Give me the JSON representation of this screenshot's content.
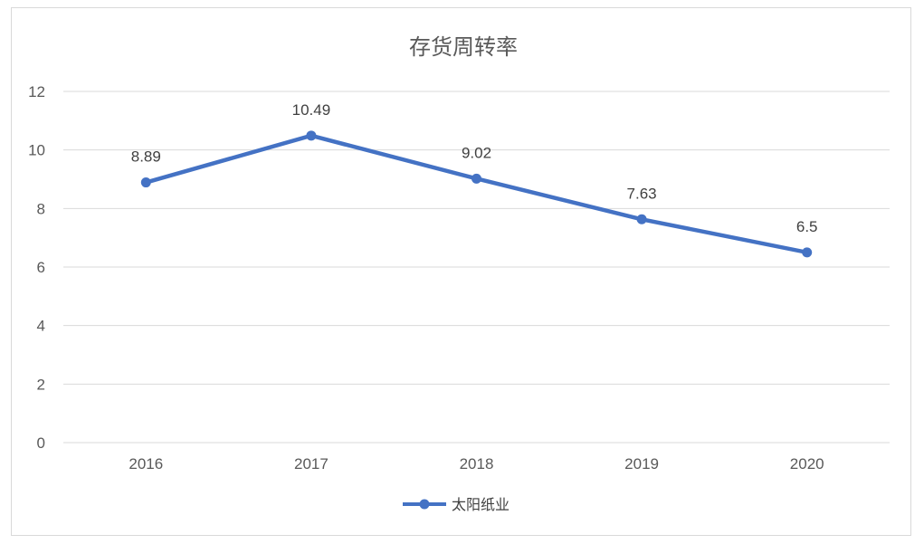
{
  "chart_data": {
    "type": "line",
    "title": "存货周转率",
    "categories": [
      "2016",
      "2017",
      "2018",
      "2019",
      "2020"
    ],
    "series": [
      {
        "name": "太阳纸业",
        "values": [
          8.89,
          10.49,
          9.02,
          7.63,
          6.5
        ],
        "labels": [
          "8.89",
          "10.49",
          "9.02",
          "7.63",
          "6.5"
        ]
      }
    ],
    "ylim": [
      0,
      12
    ],
    "yticks": [
      "0",
      "2",
      "4",
      "6",
      "8",
      "10",
      "12"
    ],
    "grid": true,
    "legend": "bottom",
    "colors": {
      "series": "#4472c4",
      "grid": "#d9d9d9",
      "text": "#595959"
    }
  }
}
